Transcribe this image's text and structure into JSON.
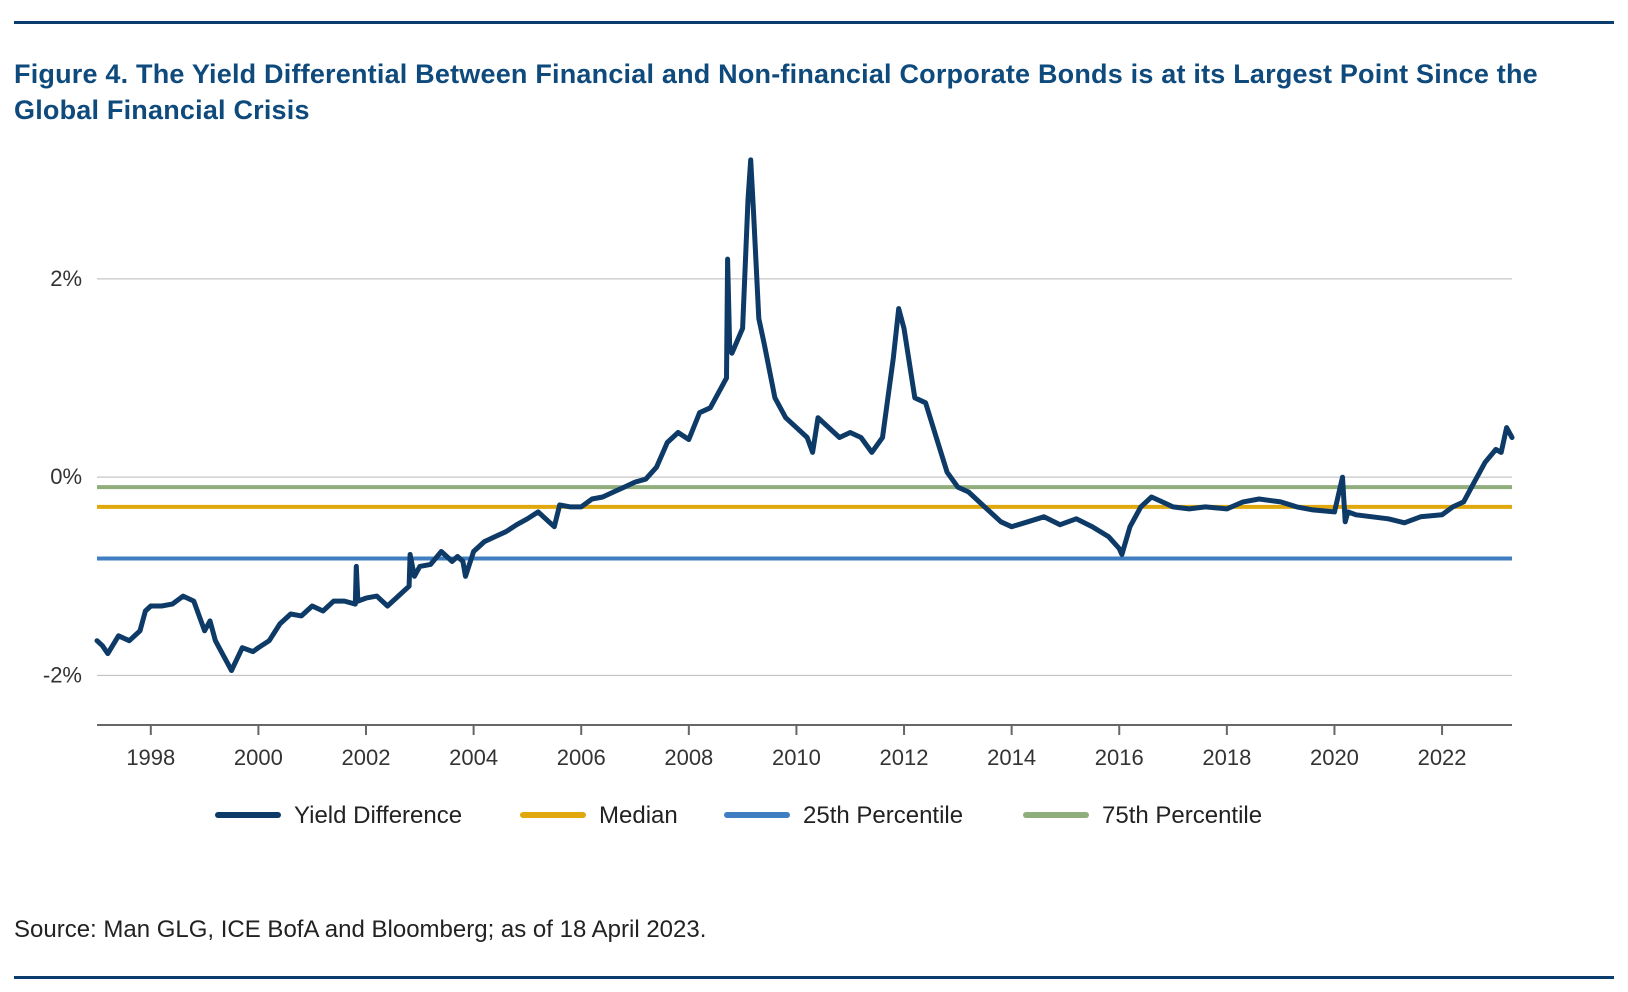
{
  "figure": {
    "title": "Figure 4. The Yield Differential Between Financial and Non-financial Corporate Bonds is at its Largest Point Since the Global Financial Crisis",
    "source": "Source: Man GLG, ICE BofA and Bloomberg; as of 18 April 2023."
  },
  "chart_data": {
    "type": "line",
    "title": "Figure 4. The Yield Differential Between Financial and Non-financial Corporate Bonds is at its Largest Point Since the Global Financial Crisis",
    "xlabel": "",
    "ylabel": "",
    "xlim": [
      1997.0,
      2023.3
    ],
    "ylim": [
      -2.5,
      3.3
    ],
    "x_ticks": [
      1998,
      2000,
      2002,
      2004,
      2006,
      2008,
      2010,
      2012,
      2014,
      2016,
      2018,
      2020,
      2022
    ],
    "x_tick_labels": [
      "1998",
      "2000",
      "2002",
      "2004",
      "2006",
      "2008",
      "2010",
      "2012",
      "2014",
      "2016",
      "2018",
      "2020",
      "2022"
    ],
    "y_ticks": [
      -2,
      0,
      2
    ],
    "y_tick_labels": [
      "-2%",
      "0%",
      "2%"
    ],
    "grid": "horizontal",
    "legend_position": "bottom",
    "series": [
      {
        "name": "Yield Difference",
        "color": "#0d3a66",
        "x": [
          1997.0,
          1997.1,
          1997.2,
          1997.4,
          1997.6,
          1997.8,
          1997.9,
          1998.0,
          1998.2,
          1998.4,
          1998.6,
          1998.8,
          1999.0,
          1999.1,
          1999.2,
          1999.3,
          1999.5,
          1999.7,
          1999.9,
          2000.0,
          2000.2,
          2000.4,
          2000.6,
          2000.8,
          2001.0,
          2001.2,
          2001.4,
          2001.6,
          2001.8,
          2001.82,
          2001.85,
          2002.0,
          2002.2,
          2002.4,
          2002.6,
          2002.8,
          2002.82,
          2002.9,
          2003.0,
          2003.2,
          2003.4,
          2003.6,
          2003.7,
          2003.8,
          2003.85,
          2004.0,
          2004.2,
          2004.4,
          2004.6,
          2004.8,
          2005.0,
          2005.2,
          2005.4,
          2005.5,
          2005.6,
          2005.8,
          2006.0,
          2006.2,
          2006.4,
          2006.6,
          2006.8,
          2007.0,
          2007.2,
          2007.4,
          2007.6,
          2007.8,
          2008.0,
          2008.2,
          2008.4,
          2008.6,
          2008.7,
          2008.72,
          2008.76,
          2008.8,
          2009.0,
          2009.1,
          2009.15,
          2009.2,
          2009.3,
          2009.4,
          2009.6,
          2009.8,
          2010.0,
          2010.2,
          2010.3,
          2010.4,
          2010.6,
          2010.8,
          2011.0,
          2011.2,
          2011.4,
          2011.6,
          2011.8,
          2011.9,
          2012.0,
          2012.2,
          2012.4,
          2012.6,
          2012.8,
          2013.0,
          2013.2,
          2013.5,
          2013.8,
          2014.0,
          2014.3,
          2014.6,
          2014.9,
          2015.2,
          2015.5,
          2015.8,
          2016.0,
          2016.05,
          2016.2,
          2016.4,
          2016.6,
          2016.8,
          2017.0,
          2017.3,
          2017.6,
          2018.0,
          2018.3,
          2018.6,
          2019.0,
          2019.3,
          2019.6,
          2020.0,
          2020.15,
          2020.2,
          2020.25,
          2020.4,
          2020.7,
          2021.0,
          2021.3,
          2021.6,
          2022.0,
          2022.2,
          2022.4,
          2022.6,
          2022.8,
          2023.0,
          2023.1,
          2023.2,
          2023.3
        ],
        "values": [
          -1.65,
          -1.7,
          -1.78,
          -1.6,
          -1.65,
          -1.55,
          -1.35,
          -1.3,
          -1.3,
          -1.28,
          -1.2,
          -1.25,
          -1.55,
          -1.45,
          -1.65,
          -1.75,
          -1.95,
          -1.72,
          -1.76,
          -1.72,
          -1.65,
          -1.48,
          -1.38,
          -1.4,
          -1.3,
          -1.35,
          -1.25,
          -1.25,
          -1.28,
          -0.9,
          -1.25,
          -1.22,
          -1.2,
          -1.3,
          -1.2,
          -1.1,
          -0.78,
          -1.0,
          -0.9,
          -0.88,
          -0.75,
          -0.85,
          -0.8,
          -0.85,
          -1.0,
          -0.75,
          -0.65,
          -0.6,
          -0.55,
          -0.48,
          -0.42,
          -0.35,
          -0.45,
          -0.5,
          -0.28,
          -0.3,
          -0.3,
          -0.22,
          -0.2,
          -0.15,
          -0.1,
          -0.05,
          -0.02,
          0.1,
          0.35,
          0.45,
          0.38,
          0.65,
          0.7,
          0.9,
          1.0,
          2.2,
          1.3,
          1.25,
          1.5,
          2.8,
          3.2,
          2.7,
          1.6,
          1.35,
          0.8,
          0.6,
          0.5,
          0.4,
          0.25,
          0.6,
          0.5,
          0.4,
          0.45,
          0.4,
          0.25,
          0.4,
          1.2,
          1.7,
          1.5,
          0.8,
          0.75,
          0.4,
          0.05,
          -0.1,
          -0.15,
          -0.3,
          -0.45,
          -0.5,
          -0.45,
          -0.4,
          -0.48,
          -0.42,
          -0.5,
          -0.6,
          -0.72,
          -0.78,
          -0.5,
          -0.3,
          -0.2,
          -0.25,
          -0.3,
          -0.32,
          -0.3,
          -0.32,
          -0.25,
          -0.22,
          -0.25,
          -0.3,
          -0.33,
          -0.35,
          0.0,
          -0.45,
          -0.35,
          -0.38,
          -0.4,
          -0.42,
          -0.46,
          -0.4,
          -0.38,
          -0.3,
          -0.25,
          -0.05,
          0.15,
          0.28,
          0.25,
          0.5,
          0.4
        ]
      },
      {
        "name": "Median",
        "color": "#e0a80c",
        "constant": -0.3
      },
      {
        "name": "25th Percentile",
        "color": "#3f7fc1",
        "constant": -0.82
      },
      {
        "name": "75th Percentile",
        "color": "#8fae7c",
        "constant": -0.1
      }
    ]
  }
}
